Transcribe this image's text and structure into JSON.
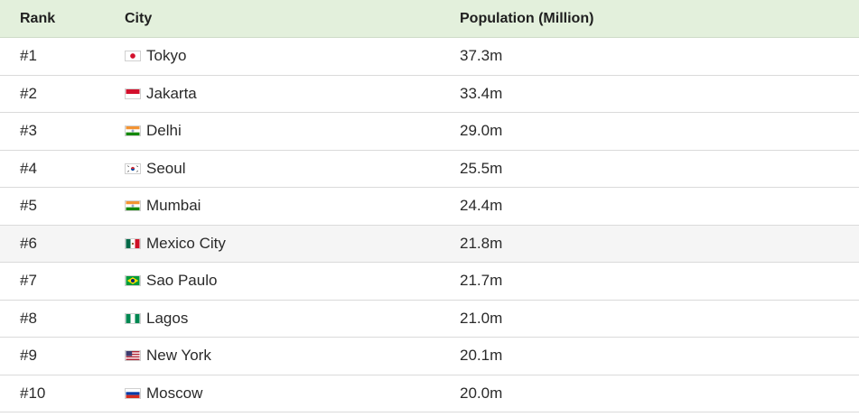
{
  "table": {
    "headers": {
      "rank": "Rank",
      "city": "City",
      "population": "Population (Million)"
    },
    "rows": [
      {
        "rank": "#1",
        "city": "Tokyo",
        "population": "37.3m",
        "flag": "japan-flag-icon"
      },
      {
        "rank": "#2",
        "city": "Jakarta",
        "population": "33.4m",
        "flag": "indonesia-flag-icon"
      },
      {
        "rank": "#3",
        "city": "Delhi",
        "population": "29.0m",
        "flag": "india-flag-icon"
      },
      {
        "rank": "#4",
        "city": "Seoul",
        "population": "25.5m",
        "flag": "south-korea-flag-icon"
      },
      {
        "rank": "#5",
        "city": "Mumbai",
        "population": "24.4m",
        "flag": "india-flag-icon"
      },
      {
        "rank": "#6",
        "city": "Mexico City",
        "population": "21.8m",
        "flag": "mexico-flag-icon"
      },
      {
        "rank": "#7",
        "city": "Sao Paulo",
        "population": "21.7m",
        "flag": "brazil-flag-icon"
      },
      {
        "rank": "#8",
        "city": "Lagos",
        "population": "21.0m",
        "flag": "nigeria-flag-icon"
      },
      {
        "rank": "#9",
        "city": "New York",
        "population": "20.1m",
        "flag": "usa-flag-icon"
      },
      {
        "rank": "#10",
        "city": "Moscow",
        "population": "20.0m",
        "flag": "russia-flag-icon"
      }
    ]
  },
  "colors": {
    "header_bg": "#e3f0dc",
    "highlight_row_bg": "#f5f5f5",
    "border": "#dadada"
  }
}
